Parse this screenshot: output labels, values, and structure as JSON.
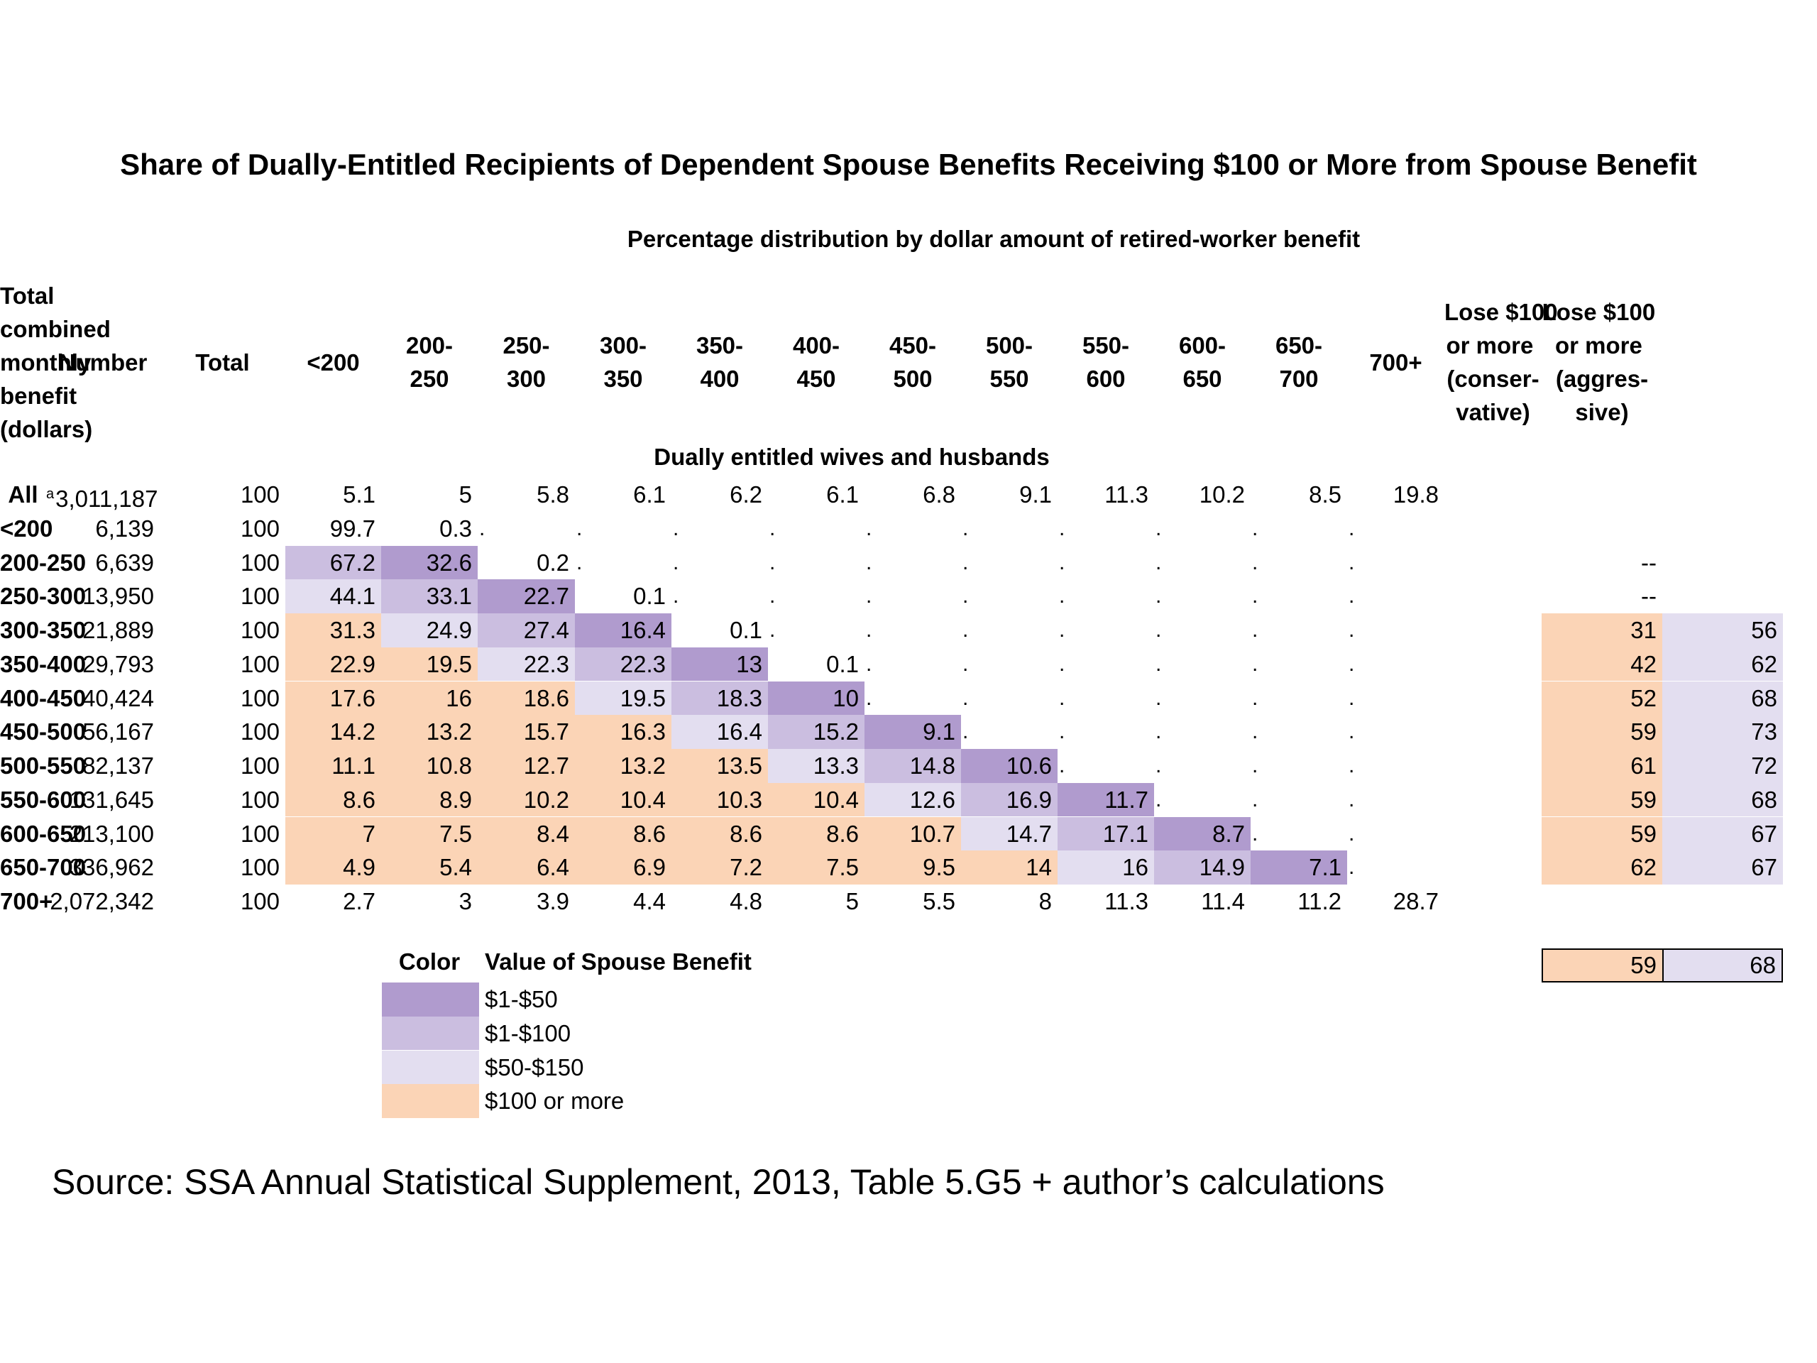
{
  "title": "Share of Dually-Entitled Recipients of Dependent Spouse Benefits Receiving $100 or More from Spouse Benefit",
  "subheader_pct": "Percentage distribution by dollar amount of retired-worker benefit",
  "subheader_group": "Dually entitled wives and husbands",
  "source": "Source: SSA Annual Statistical Supplement, 2013, Table 5.G5 + author’s calculations",
  "colors": {
    "dark": "#b09bce",
    "medium": "#cbbee0",
    "light": "#e3def0",
    "orange": "#fbd4b6"
  },
  "legend": {
    "color_header": "Color",
    "value_header": "Value of Spouse Benefit",
    "items": [
      {
        "key": "dark",
        "label": "$1-$50"
      },
      {
        "key": "medium",
        "label": "$1-$100"
      },
      {
        "key": "light",
        "label": "$50-$150"
      },
      {
        "key": "orange",
        "label": "$100 or more"
      }
    ]
  },
  "summary": {
    "conservative": "59",
    "aggressive": "68"
  },
  "chart_data": {
    "type": "table",
    "title": "Share of Dually-Entitled Recipients of Dependent Spouse Benefits Receiving $100 or More from Spouse Benefit",
    "columns": [
      "Total \ncombined \nmonthly \nbenefit \n(dollars)",
      "Number",
      "Total",
      "<200",
      "200-\n250",
      "250-\n300",
      "300-\n350",
      "350-\n400",
      "400-\n450",
      "450-\n500",
      "500-\n550",
      "550-\n600",
      "600-\n650",
      "650-\n700",
      "700+",
      "Lose $100 \nor more \n(conser-\nvative)",
      "Lose $100 \nor more \n(aggres-\nsive)"
    ],
    "note_marker": "a",
    "dot": ".  ",
    "rows": [
      {
        "label": "All",
        "number": "3,011,187",
        "note": true,
        "total": "100",
        "cells": [
          "5.1",
          "5",
          "5.8",
          "6.1",
          "6.2",
          "6.1",
          "6.8",
          "9.1",
          "11.3",
          "10.2",
          "8.5",
          "19.8"
        ],
        "fills": [
          "",
          "",
          "",
          "",
          "",
          "",
          "",
          "",
          "",
          "",
          "",
          ""
        ],
        "lose_cons": "",
        "lose_aggr": ""
      },
      {
        "label": "<200",
        "number": "6,139",
        "total": "100",
        "cells": [
          "99.7",
          "0.3",
          ".",
          ".",
          ".",
          ".",
          ".",
          ".",
          ".",
          ".",
          ".",
          "."
        ],
        "fills": [
          "",
          "",
          "",
          "",
          "",
          "",
          "",
          "",
          "",
          "",
          "",
          ""
        ],
        "lose_cons": "",
        "lose_aggr": ""
      },
      {
        "label": "200-250",
        "number": "6,639",
        "total": "100",
        "cells": [
          "67.2",
          "32.6",
          "0.2",
          ".",
          ".",
          ".",
          ".",
          ".",
          ".",
          ".",
          ".",
          "."
        ],
        "fills": [
          "medium",
          "dark",
          "",
          "",
          "",
          "",
          "",
          "",
          "",
          "",
          "",
          ""
        ],
        "lose_cons": "--",
        "lose_aggr": ""
      },
      {
        "label": "250-300",
        "number": "13,950",
        "total": "100",
        "cells": [
          "44.1",
          "33.1",
          "22.7",
          "0.1",
          ".",
          ".",
          ".",
          ".",
          ".",
          ".",
          ".",
          "."
        ],
        "fills": [
          "light",
          "medium",
          "dark",
          "",
          "",
          "",
          "",
          "",
          "",
          "",
          "",
          ""
        ],
        "lose_cons": "--",
        "lose_aggr": ""
      },
      {
        "label": "300-350",
        "number": "21,889",
        "total": "100",
        "cells": [
          "31.3",
          "24.9",
          "27.4",
          "16.4",
          "0.1",
          ".",
          ".",
          ".",
          ".",
          ".",
          ".",
          "."
        ],
        "fills": [
          "orange",
          "light",
          "medium",
          "dark",
          "",
          "",
          "",
          "",
          "",
          "",
          "",
          ""
        ],
        "lose_cons": "31",
        "lose_aggr": "56"
      },
      {
        "label": "350-400",
        "number": "29,793",
        "total": "100",
        "cells": [
          "22.9",
          "19.5",
          "22.3",
          "22.3",
          "13",
          "0.1",
          ".",
          ".",
          ".",
          ".",
          ".",
          "."
        ],
        "fills": [
          "orange",
          "orange",
          "light",
          "medium",
          "dark",
          "",
          "",
          "",
          "",
          "",
          "",
          ""
        ],
        "lose_cons": "42",
        "lose_aggr": "62"
      },
      {
        "label": "400-450",
        "number": "40,424",
        "total": "100",
        "cells": [
          "17.6",
          "16",
          "18.6",
          "19.5",
          "18.3",
          "10",
          ".",
          ".",
          ".",
          ".",
          ".",
          "."
        ],
        "fills": [
          "orange",
          "orange",
          "orange",
          "light",
          "medium",
          "dark",
          "",
          "",
          "",
          "",
          "",
          ""
        ],
        "lose_cons": "52",
        "lose_aggr": "68"
      },
      {
        "label": "450-500",
        "number": "56,167",
        "total": "100",
        "cells": [
          "14.2",
          "13.2",
          "15.7",
          "16.3",
          "16.4",
          "15.2",
          "9.1",
          ".",
          ".",
          ".",
          ".",
          "."
        ],
        "fills": [
          "orange",
          "orange",
          "orange",
          "orange",
          "light",
          "medium",
          "dark",
          "",
          "",
          "",
          "",
          ""
        ],
        "lose_cons": "59",
        "lose_aggr": "73"
      },
      {
        "label": "500-550",
        "number": "82,137",
        "total": "100",
        "cells": [
          "11.1",
          "10.8",
          "12.7",
          "13.2",
          "13.5",
          "13.3",
          "14.8",
          "10.6",
          ".",
          ".",
          ".",
          "."
        ],
        "fills": [
          "orange",
          "orange",
          "orange",
          "orange",
          "orange",
          "light",
          "medium",
          "dark",
          "",
          "",
          "",
          ""
        ],
        "lose_cons": "61",
        "lose_aggr": "72"
      },
      {
        "label": "550-600",
        "number": "131,645",
        "total": "100",
        "cells": [
          "8.6",
          "8.9",
          "10.2",
          "10.4",
          "10.3",
          "10.4",
          "12.6",
          "16.9",
          "11.7",
          ".",
          ".",
          "."
        ],
        "fills": [
          "orange",
          "orange",
          "orange",
          "orange",
          "orange",
          "orange",
          "light",
          "medium",
          "dark",
          "",
          "",
          ""
        ],
        "lose_cons": "59",
        "lose_aggr": "68"
      },
      {
        "label": "600-650",
        "number": "213,100",
        "total": "100",
        "cells": [
          "7",
          "7.5",
          "8.4",
          "8.6",
          "8.6",
          "8.6",
          "10.7",
          "14.7",
          "17.1",
          "8.7",
          ".",
          "."
        ],
        "fills": [
          "orange",
          "orange",
          "orange",
          "orange",
          "orange",
          "orange",
          "orange",
          "light",
          "medium",
          "dark",
          "",
          ""
        ],
        "lose_cons": "59",
        "lose_aggr": "67"
      },
      {
        "label": "650-700",
        "number": "336,962",
        "total": "100",
        "cells": [
          "4.9",
          "5.4",
          "6.4",
          "6.9",
          "7.2",
          "7.5",
          "9.5",
          "14",
          "16",
          "14.9",
          "7.1",
          "."
        ],
        "fills": [
          "orange",
          "orange",
          "orange",
          "orange",
          "orange",
          "orange",
          "orange",
          "orange",
          "light",
          "medium",
          "dark",
          ""
        ],
        "lose_cons": "62",
        "lose_aggr": "67"
      },
      {
        "label": "700+",
        "number": "2,072,342",
        "total": "100",
        "cells": [
          "2.7",
          "3",
          "3.9",
          "4.4",
          "4.8",
          "5",
          "5.5",
          "8",
          "11.3",
          "11.4",
          "11.2",
          "28.7"
        ],
        "fills": [
          "",
          "",
          "",
          "",
          "",
          "",
          "",
          "",
          "",
          "",
          "",
          ""
        ],
        "lose_cons": "",
        "lose_aggr": ""
      }
    ]
  }
}
